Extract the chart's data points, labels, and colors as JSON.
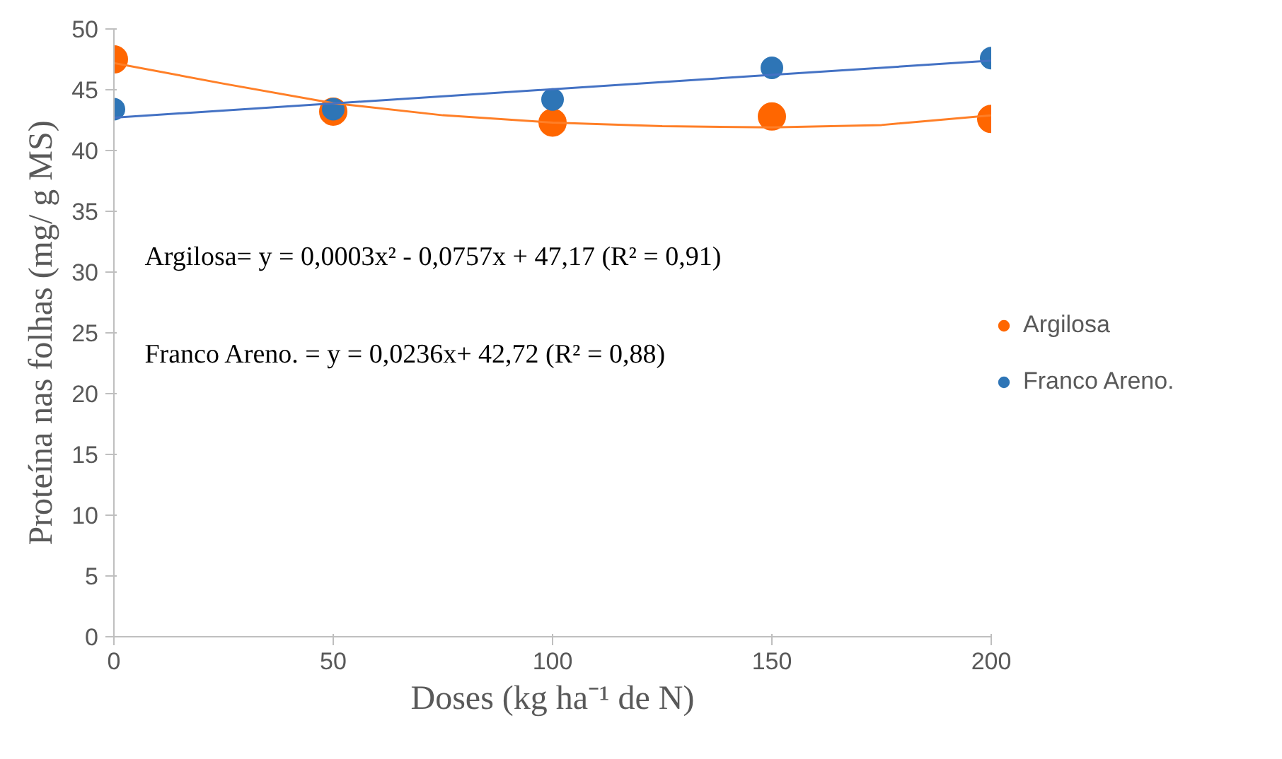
{
  "chart_data": {
    "type": "scatter",
    "xlabel": "Doses (kg ha⁻¹ de N)",
    "ylabel": "Proteína nas folhas (mg/ g MS)",
    "xlim": [
      0,
      200
    ],
    "xticks": [
      0,
      50,
      100,
      150,
      200
    ],
    "ylim": [
      0,
      50
    ],
    "yticks": [
      0,
      5,
      10,
      15,
      20,
      25,
      30,
      35,
      40,
      45,
      50
    ],
    "grid": false,
    "legend": "right",
    "marker": "circle",
    "series": [
      {
        "name": "Argilosa",
        "color": "#ff6600",
        "x": [
          0,
          50,
          100,
          150,
          200
        ],
        "values": [
          47.5,
          43.2,
          42.3,
          42.8,
          42.6
        ]
      },
      {
        "name": "Franco Areno.",
        "color": "#2e75b6",
        "x": [
          0,
          50,
          100,
          150,
          200
        ],
        "values": [
          43.4,
          43.4,
          44.2,
          46.8,
          47.6
        ]
      },
      {
        "type": "line",
        "color": "#ff7f27",
        "marker": "none",
        "x": [
          0,
          25,
          50,
          75,
          100,
          125,
          150,
          175,
          200
        ],
        "values": [
          47.2,
          45.5,
          43.9,
          42.9,
          42.3,
          42.0,
          41.9,
          42.1,
          42.9
        ]
      },
      {
        "type": "line",
        "color": "#4472c4",
        "marker": "none",
        "x": [
          0,
          200
        ],
        "values": [
          42.7,
          47.4
        ]
      }
    ],
    "annotations": [
      "Argilosa= y = 0,0003x² - 0,0757x + 47,17 (R² = 0,91)",
      "Franco Areno. = y = 0,0236x+ 42,72 (R² = 0,88)"
    ]
  }
}
